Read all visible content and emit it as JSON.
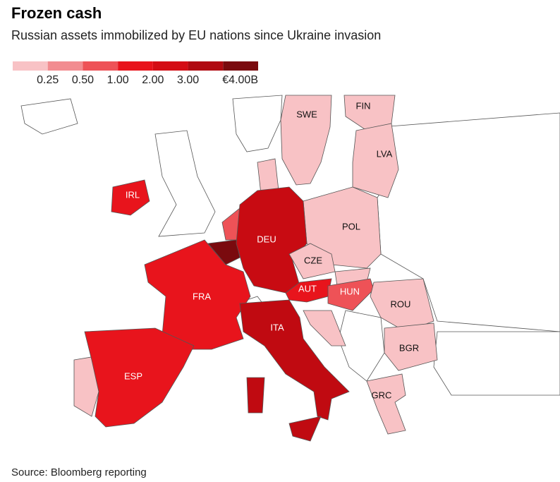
{
  "header": {
    "title": "Frozen cash",
    "subtitle": "Russian assets immobilized by EU nations since Ukraine invasion"
  },
  "legend": {
    "colors": [
      "#f8c2c5",
      "#f28c90",
      "#ee5257",
      "#e8141c",
      "#d40d15",
      "#b00a11",
      "#7a0a0e"
    ],
    "labels": [
      "0.25",
      "0.50",
      "1.00",
      "2.00",
      "3.00",
      "€4.00B"
    ]
  },
  "countries": [
    {
      "label": "SWE",
      "color": "#f8c2c5"
    },
    {
      "label": "FIN",
      "color": "#f8c2c5"
    },
    {
      "label": "LVA",
      "color": "#f8c2c5"
    },
    {
      "label": "IRL",
      "color": "#e8141c"
    },
    {
      "label": "POL",
      "color": "#f8c2c5"
    },
    {
      "label": "DEU",
      "color": "#c80b12"
    },
    {
      "label": "CZE",
      "color": "#f8c2c5"
    },
    {
      "label": "FRA",
      "color": "#e8141c"
    },
    {
      "label": "AUT",
      "color": "#e8141c"
    },
    {
      "label": "HUN",
      "color": "#ee5257"
    },
    {
      "label": "ROU",
      "color": "#f8c2c5"
    },
    {
      "label": "ITA",
      "color": "#c00a11"
    },
    {
      "label": "BGR",
      "color": "#f8c2c5"
    },
    {
      "label": "ESP",
      "color": "#e8141c"
    },
    {
      "label": "GRC",
      "color": "#f8c2c5"
    }
  ],
  "footer": {
    "source": "Source: Bloomberg reporting"
  }
}
